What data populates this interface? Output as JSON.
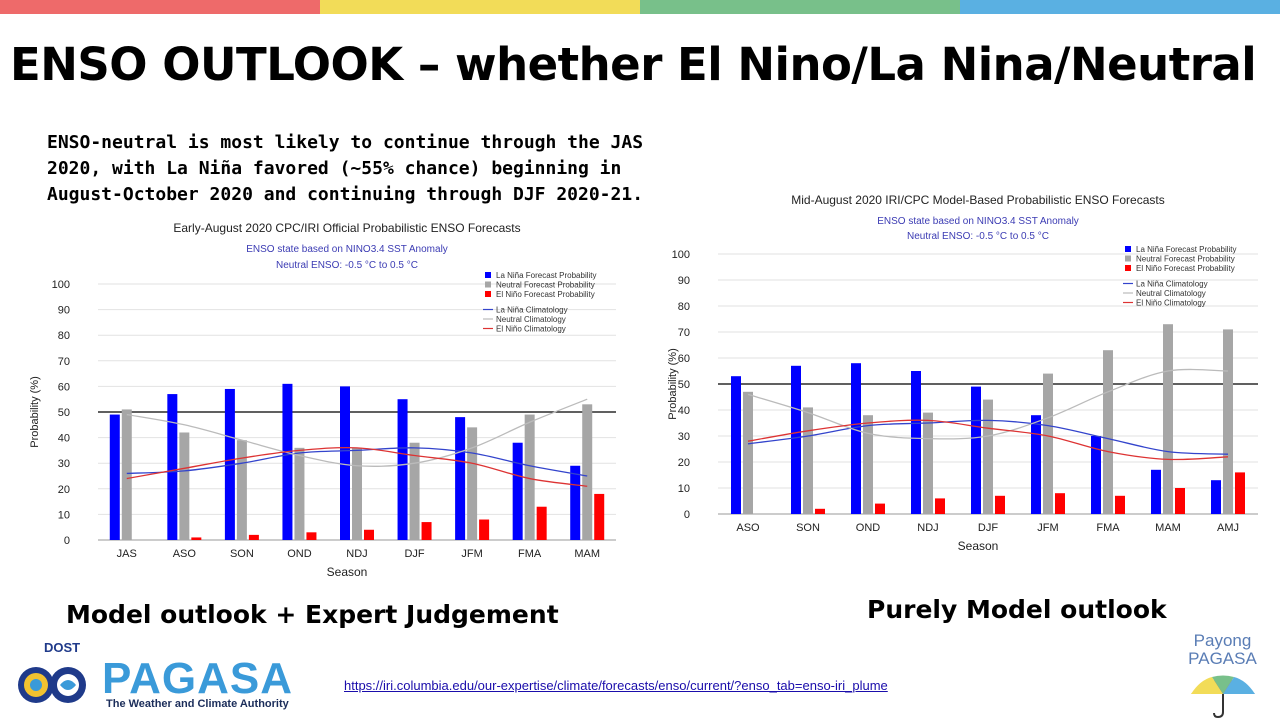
{
  "colors": {
    "topbar": [
      "#ee6a6a",
      "#f2dc58",
      "#78c08a",
      "#5ab0e2"
    ],
    "la_nina": "#0000ff",
    "neutral": "#a6a6a6",
    "el_nino": "#ff0000",
    "la_nina_clim": "#3344cc",
    "neutral_clim": "#bbbbbb",
    "el_nino_clim": "#dd3333"
  },
  "slide": {
    "title": "ENSO OUTLOOK – whether El Nino/La Nina/Neutral",
    "summary": "ENSO-neutral is most likely to continue through the JAS 2020, with La Niña favored (~55% chance) beginning in August-October 2020 and continuing through DJF 2020-21.",
    "caption_left": "Model outlook + Expert Judgement",
    "caption_right": "Purely Model outlook",
    "url": "https://iri.columbia.edu/our-expertise/climate/forecasts/enso/current/?enso_tab=enso-iri_plume"
  },
  "logos": {
    "dost": "DOST",
    "pagasa": "PAGASA",
    "tagline": "The Weather and Climate Authority",
    "payong_line1": "Payong",
    "payong_line2": "PAGASA"
  },
  "chart_data": [
    {
      "type": "bar",
      "title": "Early-August 2020 CPC/IRI Official Probabilistic ENSO Forecasts",
      "subtitle1": "ENSO state based on NINO3.4 SST Anomaly",
      "subtitle2": "Neutral ENSO: -0.5 °C to 0.5 °C",
      "xlabel": "Season",
      "ylabel": "Probability (%)",
      "ylim": [
        0,
        100
      ],
      "yticks": [
        0,
        10,
        20,
        30,
        40,
        50,
        60,
        70,
        80,
        90,
        100
      ],
      "reference_line": 50,
      "categories": [
        "JAS",
        "ASO",
        "SON",
        "OND",
        "NDJ",
        "DJF",
        "JFM",
        "FMA",
        "MAM"
      ],
      "series": [
        {
          "name": "La Niña Forecast Probability",
          "values": [
            49,
            57,
            59,
            61,
            60,
            55,
            48,
            38,
            29
          ]
        },
        {
          "name": "Neutral Forecast Probability",
          "values": [
            51,
            42,
            39,
            36,
            36,
            38,
            44,
            49,
            53
          ]
        },
        {
          "name": "El Niño Forecast Probability",
          "values": [
            0,
            1,
            2,
            3,
            4,
            7,
            8,
            13,
            18
          ]
        }
      ],
      "lines": [
        {
          "name": "La Niña Climatology",
          "values": [
            26,
            27,
            30,
            34,
            35,
            36,
            34,
            29,
            25
          ]
        },
        {
          "name": "Neutral Climatology",
          "values": [
            49,
            45,
            39,
            33,
            29,
            30,
            36,
            46,
            55
          ]
        },
        {
          "name": "El Niño Climatology",
          "values": [
            24,
            28,
            32,
            35,
            36,
            33,
            30,
            24,
            21
          ]
        }
      ],
      "legend": "top-right"
    },
    {
      "type": "bar",
      "title": "Mid-August 2020 IRI/CPC Model-Based Probabilistic ENSO Forecasts",
      "subtitle1": "ENSO state based on NINO3.4 SST Anomaly",
      "subtitle2": "Neutral ENSO: -0.5 °C to 0.5 °C",
      "xlabel": "Season",
      "ylabel": "Probability (%)",
      "ylim": [
        0,
        100
      ],
      "yticks": [
        0,
        10,
        20,
        30,
        40,
        50,
        60,
        70,
        80,
        90,
        100
      ],
      "reference_line": 50,
      "categories": [
        "ASO",
        "SON",
        "OND",
        "NDJ",
        "DJF",
        "JFM",
        "FMA",
        "MAM",
        "AMJ"
      ],
      "series": [
        {
          "name": "La Niña Forecast Probability",
          "values": [
            53,
            57,
            58,
            55,
            49,
            38,
            30,
            17,
            13
          ]
        },
        {
          "name": "Neutral Forecast Probability",
          "values": [
            47,
            41,
            38,
            39,
            44,
            54,
            63,
            73,
            71
          ]
        },
        {
          "name": "El Niño Forecast Probability",
          "values": [
            0,
            2,
            4,
            6,
            7,
            8,
            7,
            10,
            16
          ]
        }
      ],
      "lines": [
        {
          "name": "La Niña Climatology",
          "values": [
            27,
            30,
            34,
            35,
            36,
            34,
            29,
            24,
            23
          ]
        },
        {
          "name": "Neutral Climatology",
          "values": [
            46,
            39,
            31,
            29,
            30,
            37,
            47,
            55,
            55
          ]
        },
        {
          "name": "El Niño Climatology",
          "values": [
            28,
            32,
            35,
            36,
            33,
            30,
            24,
            21,
            22
          ]
        }
      ],
      "legend": "top-right"
    }
  ]
}
